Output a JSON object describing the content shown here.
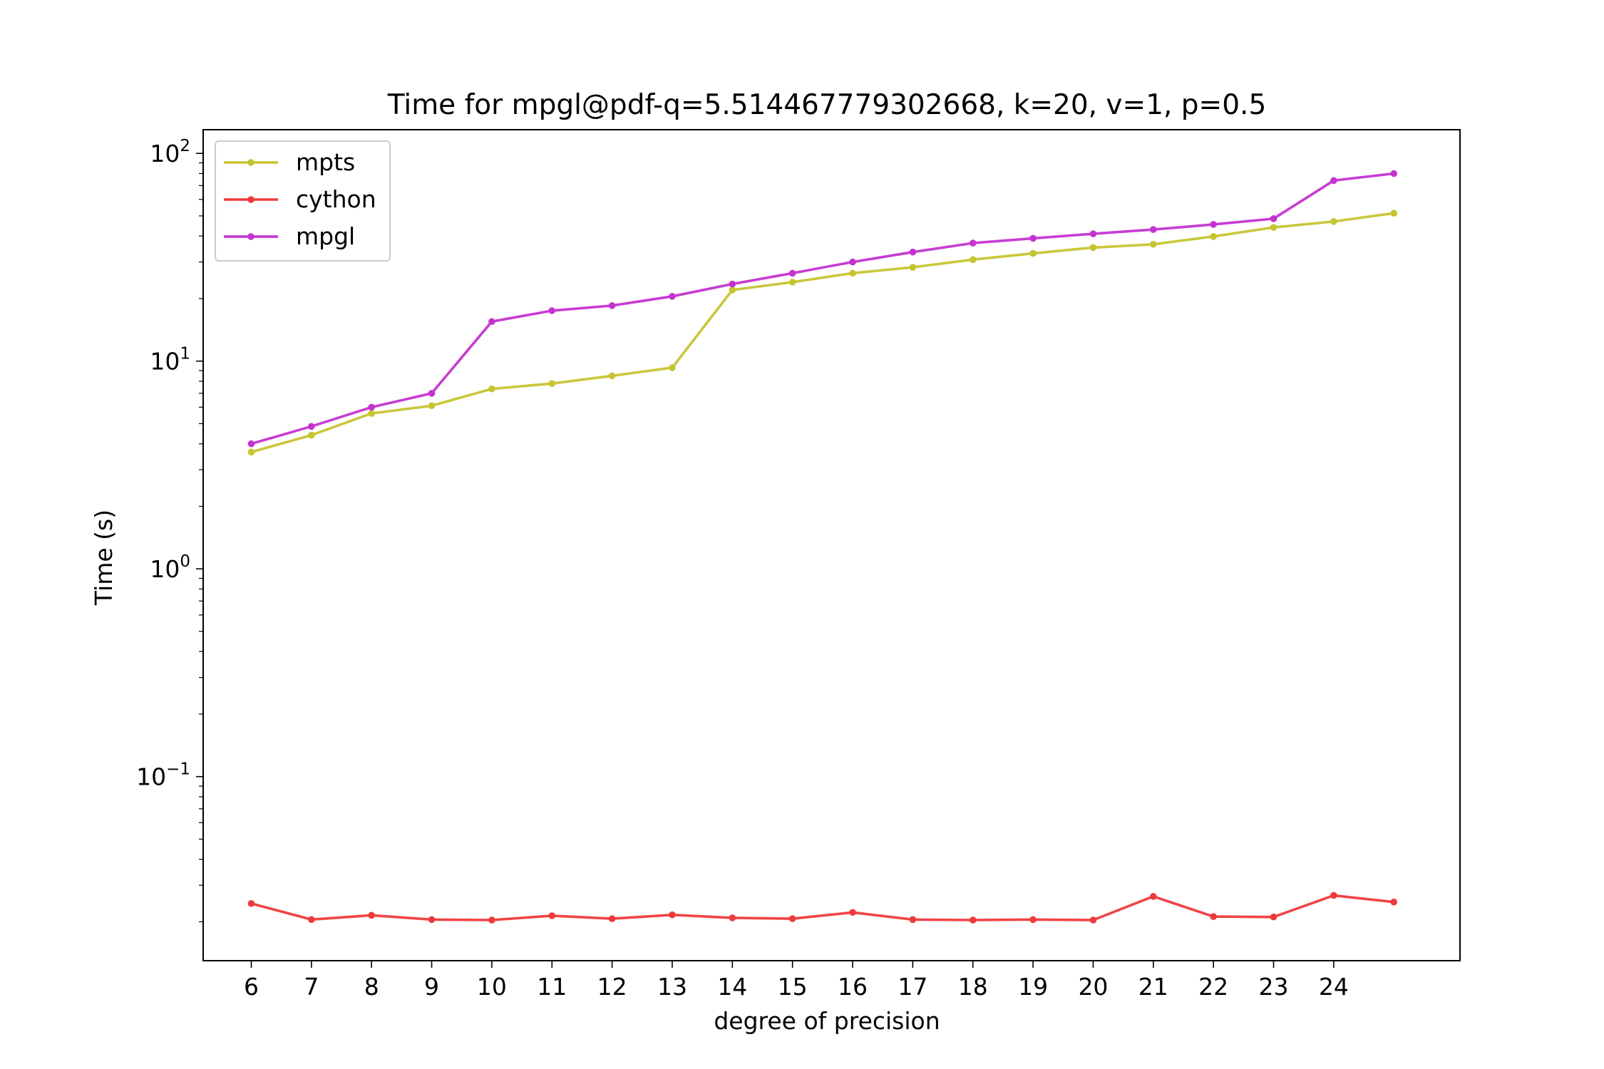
{
  "chart_data": {
    "type": "line",
    "title": "Time for mpgl@pdf-q=5.514467779302668, k=20, v=1, p=0.5",
    "xlabel": "degree of precision",
    "ylabel": "Time (s)",
    "yscale": "log",
    "ylim": [
      0.013,
      130
    ],
    "xlim": [
      5.2,
      26.1
    ],
    "x": [
      6,
      7,
      8,
      9,
      10,
      11,
      12,
      13,
      14,
      15,
      16,
      17,
      18,
      19,
      20,
      21,
      22,
      23,
      24,
      25
    ],
    "xticks": [
      6,
      7,
      8,
      9,
      10,
      11,
      12,
      13,
      14,
      15,
      16,
      17,
      18,
      19,
      20,
      21,
      22,
      23,
      24
    ],
    "xtick_labels": [
      "6",
      "7",
      "8",
      "9",
      "10",
      "11",
      "12",
      "13",
      "14",
      "15",
      "16",
      "17",
      "18",
      "19",
      "20",
      "21",
      "22",
      "23",
      "24"
    ],
    "yticks": [
      {
        "value": 0.1,
        "base": "10",
        "exp": "−1"
      },
      {
        "value": 1,
        "base": "10",
        "exp": "0"
      },
      {
        "value": 10,
        "base": "10",
        "exp": "1"
      },
      {
        "value": 100,
        "base": "10",
        "exp": "2"
      }
    ],
    "grid": false,
    "legend_position": "top-left",
    "series": [
      {
        "name": "mpts",
        "color": "#c6c430",
        "values": [
          3.65,
          4.4,
          5.6,
          6.1,
          7.35,
          7.8,
          8.5,
          9.3,
          22.0,
          24.0,
          26.5,
          28.3,
          30.8,
          33.0,
          35.2,
          36.5,
          39.8,
          44.0,
          47.0,
          51.5
        ]
      },
      {
        "name": "cython",
        "color": "#ef3a3c",
        "values": [
          0.0245,
          0.0205,
          0.0215,
          0.0205,
          0.0204,
          0.0214,
          0.0207,
          0.0216,
          0.0209,
          0.0207,
          0.0222,
          0.0205,
          0.0204,
          0.0205,
          0.0204,
          0.0265,
          0.0212,
          0.0211,
          0.0268,
          0.0249
        ]
      },
      {
        "name": "mpgl",
        "color": "#c433cf",
        "values": [
          4.0,
          4.85,
          6.0,
          7.0,
          15.5,
          17.5,
          18.5,
          20.5,
          23.5,
          26.5,
          30.0,
          33.5,
          37.0,
          39.0,
          41.0,
          43.0,
          45.5,
          48.5,
          74.0,
          80.0
        ]
      }
    ]
  }
}
